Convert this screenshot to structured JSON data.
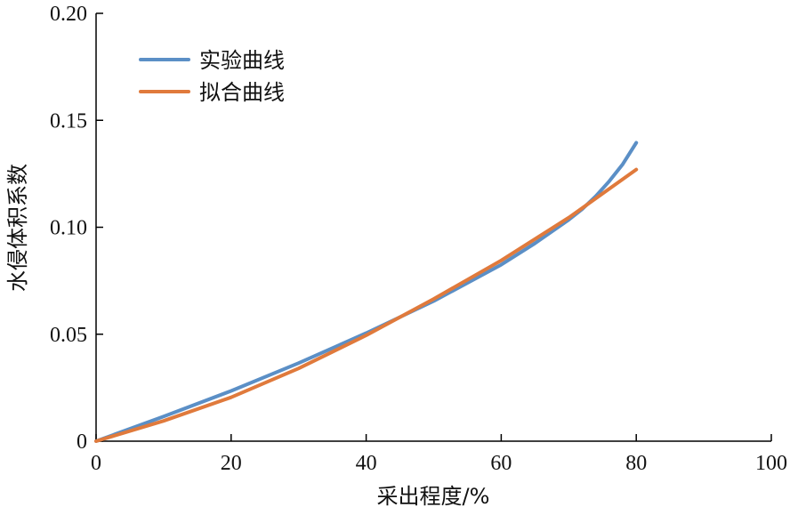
{
  "chart_data": {
    "type": "line",
    "xlabel": "采出程度/%",
    "ylabel": "水侵体积系数",
    "xlim": [
      0,
      100
    ],
    "ylim": [
      0,
      0.2
    ],
    "x_ticks": [
      0,
      20,
      40,
      60,
      80,
      100
    ],
    "x_tick_labels": [
      "0",
      "20",
      "40",
      "60",
      "80",
      "100"
    ],
    "y_ticks": [
      0,
      0.05,
      0.1,
      0.15,
      0.2
    ],
    "y_tick_labels": [
      "0",
      "0.05",
      "0.10",
      "0.15",
      "0.20"
    ],
    "grid": false,
    "legend_position": "top-left",
    "series": [
      {
        "name": "实验曲线",
        "color": "#5b8fc6",
        "x": [
          0,
          10,
          20,
          30,
          40,
          50,
          60,
          65,
          70,
          72,
          74,
          76,
          78,
          80
        ],
        "y": [
          0,
          0.0115,
          0.0235,
          0.0365,
          0.0505,
          0.0655,
          0.0825,
          0.0925,
          0.1035,
          0.1085,
          0.1145,
          0.1215,
          0.1295,
          0.1395
        ]
      },
      {
        "name": "拟合曲线",
        "color": "#e07a3c",
        "x": [
          0,
          10,
          20,
          30,
          40,
          50,
          60,
          70,
          80
        ],
        "y": [
          0,
          0.0095,
          0.0205,
          0.034,
          0.0495,
          0.0665,
          0.0845,
          0.1045,
          0.127
        ]
      }
    ]
  }
}
